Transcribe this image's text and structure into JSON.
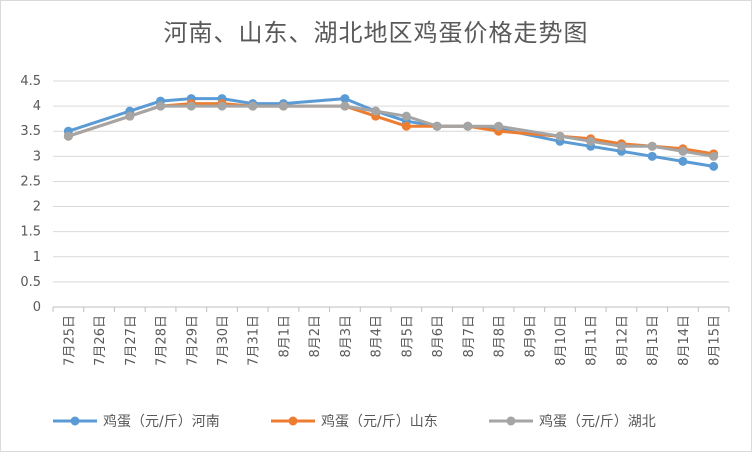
{
  "chart_data": {
    "type": "line",
    "title": "河南、山东、湖北地区鸡蛋价格走势图",
    "xlabel": "",
    "ylabel": "",
    "ylim": [
      0,
      4.5
    ],
    "y_ticks": [
      "0",
      "0.5",
      "1",
      "1.5",
      "2",
      "2.5",
      "3",
      "3.5",
      "4",
      "4.5"
    ],
    "grid": true,
    "legend": "bottom",
    "categories": [
      "7月25日",
      "7月26日",
      "7月27日",
      "7月28日",
      "7月29日",
      "7月30日",
      "7月31日",
      "8月1日",
      "8月2日",
      "8月3日",
      "8月4日",
      "8月5日",
      "8月6日",
      "8月7日",
      "8月8日",
      "8月9日",
      "8月10日",
      "8月11日",
      "8月12日",
      "8月13日",
      "8月14日",
      "8月15日"
    ],
    "series": [
      {
        "name": "鸡蛋（元/斤）河南",
        "color": "#5b9bd5",
        "values": [
          3.5,
          null,
          3.9,
          4.1,
          4.15,
          4.15,
          4.05,
          4.05,
          null,
          4.15,
          3.9,
          3.7,
          3.6,
          3.6,
          3.55,
          null,
          3.3,
          3.2,
          3.1,
          3.0,
          2.9,
          2.8
        ]
      },
      {
        "name": "鸡蛋（元/斤）山东",
        "color": "#ed7d31",
        "values": [
          3.4,
          null,
          3.8,
          4.0,
          4.05,
          4.05,
          4.0,
          4.0,
          null,
          4.0,
          3.8,
          3.6,
          3.6,
          3.6,
          3.5,
          null,
          3.4,
          3.35,
          3.25,
          3.2,
          3.15,
          3.05
        ]
      },
      {
        "name": "鸡蛋（元/斤）湖北",
        "color": "#a5a5a5",
        "values": [
          3.4,
          null,
          3.8,
          4.0,
          4.0,
          4.0,
          4.0,
          4.0,
          null,
          4.0,
          3.9,
          3.8,
          3.6,
          3.6,
          3.6,
          null,
          3.4,
          3.3,
          3.2,
          3.2,
          3.1,
          3.0
        ]
      }
    ]
  }
}
